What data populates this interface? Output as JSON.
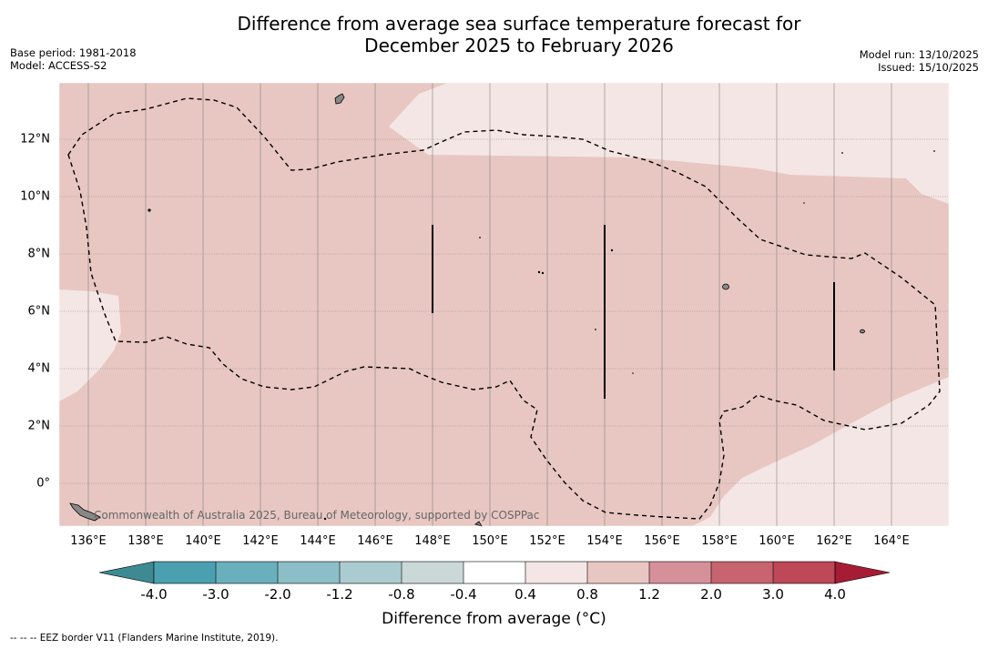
{
  "title": {
    "line1": "Difference from average sea surface temperature forecast for",
    "line2": "December 2025 to February 2026"
  },
  "meta_left": {
    "base_period": "Base period: 1981-2018",
    "model": "Model: ACCESS-S2"
  },
  "meta_right": {
    "model_run": "Model run: 13/10/2025",
    "issued": "Issued: 15/10/2025"
  },
  "map": {
    "lon_labels": [
      "136°E",
      "138°E",
      "140°E",
      "142°E",
      "144°E",
      "146°E",
      "148°E",
      "150°E",
      "152°E",
      "154°E",
      "156°E",
      "158°E",
      "160°E",
      "162°E",
      "164°E"
    ],
    "lat_labels": [
      "12°N",
      "10°N",
      "8°N",
      "6°N",
      "4°N",
      "2°N",
      "0°"
    ],
    "copyright": "Commonwealth of Australia 2025, Bureau of Meteorology, supported by COSPPac",
    "colors": {
      "band_04_08": "#f4e6e4",
      "band_08_12": "#e8c7c2",
      "graticule": "#808080",
      "land": "#888888"
    }
  },
  "colorbar": {
    "title": "Difference from average (°C)",
    "labels": [
      "-4.0",
      "-3.0",
      "-2.0",
      "-1.2",
      "-0.8",
      "-0.4",
      "0.4",
      "0.8",
      "1.2",
      "2.0",
      "3.0",
      "4.0"
    ],
    "colors": [
      "#4aa0b0",
      "#6aafbc",
      "#8cbec8",
      "#aaccd0",
      "#cbd8d8",
      "#ffffff",
      "#f4e6e4",
      "#e8c7c2",
      "#d5909a",
      "#c7646f",
      "#bd4858"
    ],
    "extend_low": "#3d8a93",
    "extend_high": "#a61c35"
  },
  "footnote": "-- -- -- EEZ border V11 (Flanders Marine Institute, 2019)."
}
